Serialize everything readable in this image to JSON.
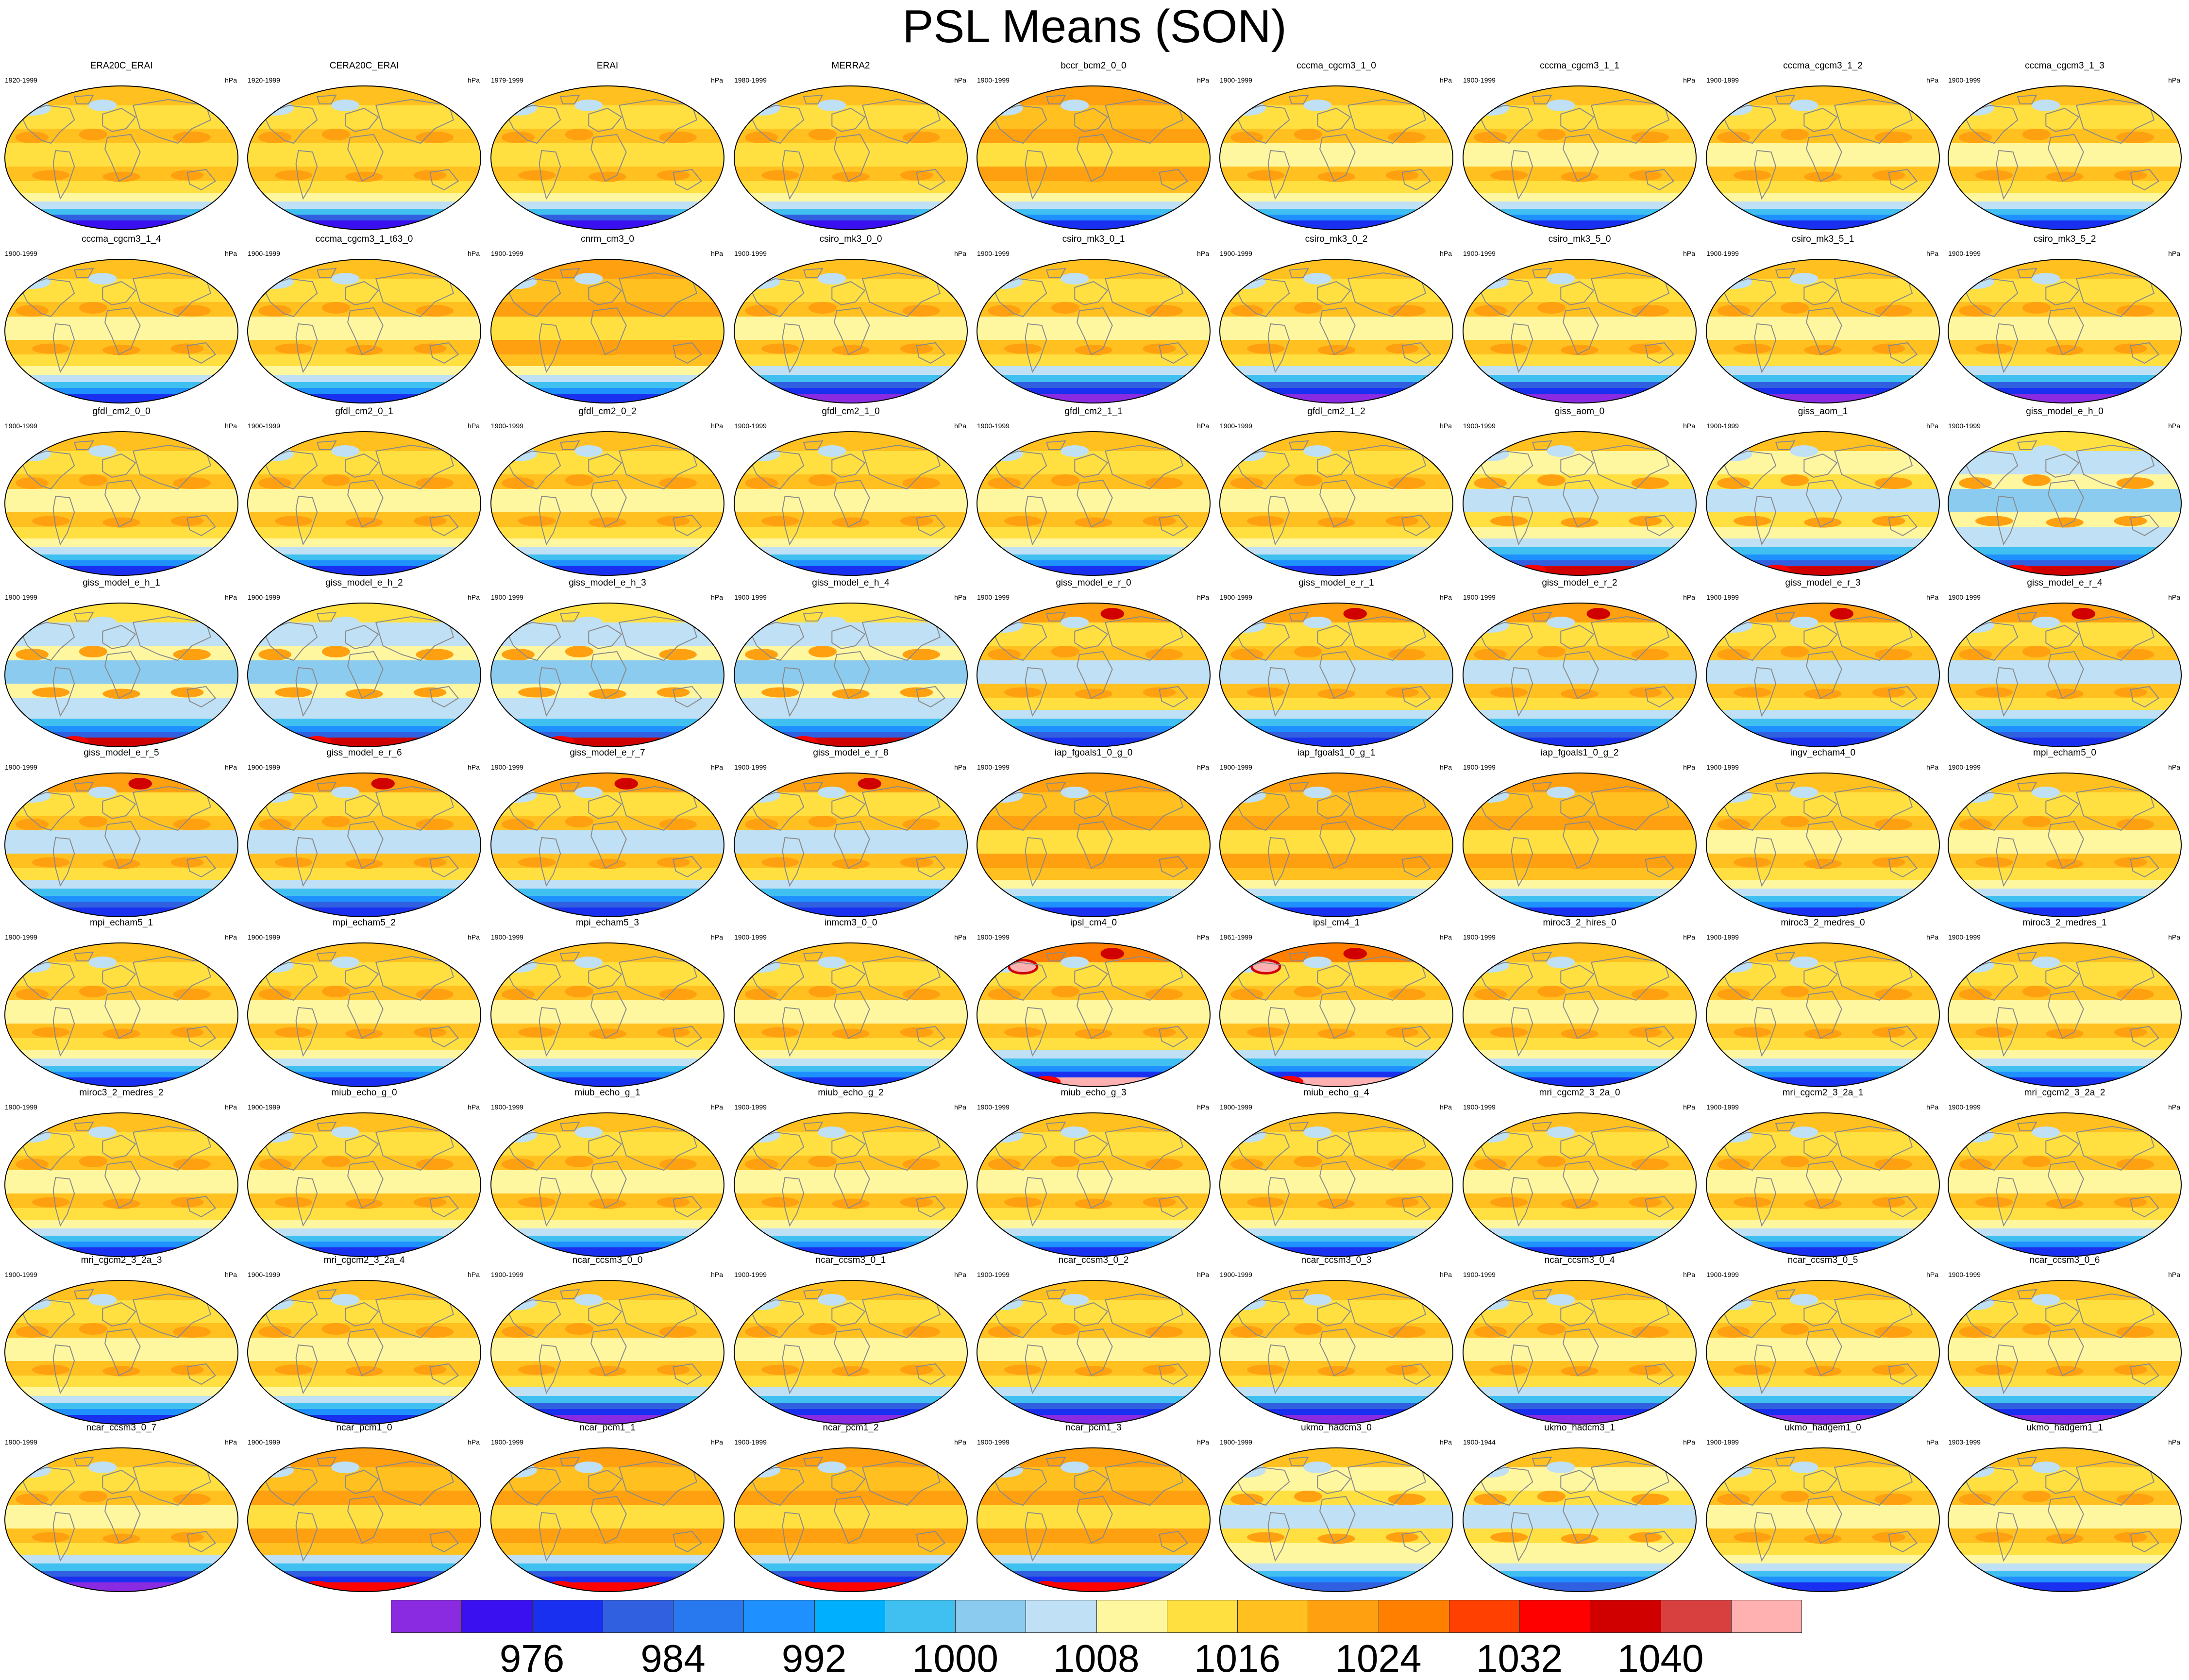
{
  "title": "PSL Means (SON)",
  "units": "hPa",
  "chart_data": {
    "type": "heatmap",
    "title": "PSL Means (SON)",
    "units": "hPa",
    "projection": "Robinson",
    "layout": {
      "rows": 9,
      "columns": 9
    },
    "colorbar": {
      "orientation": "horizontal",
      "placement": "bottom",
      "levels": [
        972,
        976,
        980,
        984,
        988,
        992,
        996,
        1000,
        1004,
        1008,
        1012,
        1016,
        1020,
        1024,
        1028,
        1032,
        1036,
        1040,
        1044
      ],
      "labels": [
        "976",
        "984",
        "992",
        "1000",
        "1008",
        "1016",
        "1024",
        "1032",
        "1040"
      ],
      "colors": [
        "#8a2be2",
        "#3a10f0",
        "#1a30f0",
        "#3060e0",
        "#2878f0",
        "#1e90ff",
        "#00b0ff",
        "#40c0f0",
        "#8ccbf0",
        "#bfe0f5",
        "#fff7a0",
        "#ffe040",
        "#ffc020",
        "#ffa010",
        "#ff8000",
        "#ff4000",
        "#ff0000",
        "#d00000",
        "#d84040",
        "#ffb0b0"
      ]
    },
    "panels": [
      {
        "name": "ERA20C_ERAI",
        "period": "1920-1999",
        "style": "obs"
      },
      {
        "name": "CERA20C_ERAI",
        "period": "1920-1999",
        "style": "obs"
      },
      {
        "name": "ERAI",
        "period": "1979-1999",
        "style": "obs"
      },
      {
        "name": "MERRA2",
        "period": "1980-1999",
        "style": "obs"
      },
      {
        "name": "bccr_bcm2_0_0",
        "period": "1900-1999",
        "style": "warm"
      },
      {
        "name": "cccma_cgcm3_1_0",
        "period": "1900-1999",
        "style": "normal"
      },
      {
        "name": "cccma_cgcm3_1_1",
        "period": "1900-1999",
        "style": "normal"
      },
      {
        "name": "cccma_cgcm3_1_2",
        "period": "1900-1999",
        "style": "normal"
      },
      {
        "name": "cccma_cgcm3_1_3",
        "period": "1900-1999",
        "style": "normal"
      },
      {
        "name": "cccma_cgcm3_1_4",
        "period": "1900-1999",
        "style": "normal"
      },
      {
        "name": "cccma_cgcm3_1_t63_0",
        "period": "1900-1999",
        "style": "normal"
      },
      {
        "name": "cnrm_cm3_0",
        "period": "1900-1999",
        "style": "warm"
      },
      {
        "name": "csiro_mk3_0_0",
        "period": "1900-1999",
        "style": "deep"
      },
      {
        "name": "csiro_mk3_0_1",
        "period": "1900-1999",
        "style": "deep"
      },
      {
        "name": "csiro_mk3_0_2",
        "period": "1900-1999",
        "style": "deep"
      },
      {
        "name": "csiro_mk3_5_0",
        "period": "1900-1999",
        "style": "deep"
      },
      {
        "name": "csiro_mk3_5_1",
        "period": "1900-1999",
        "style": "deep"
      },
      {
        "name": "csiro_mk3_5_2",
        "period": "1900-1999",
        "style": "deep"
      },
      {
        "name": "gfdl_cm2_0_0",
        "period": "1900-1999",
        "style": "normal"
      },
      {
        "name": "gfdl_cm2_0_1",
        "period": "1900-1999",
        "style": "normal"
      },
      {
        "name": "gfdl_cm2_0_2",
        "period": "1900-1999",
        "style": "normal"
      },
      {
        "name": "gfdl_cm2_1_0",
        "period": "1900-1999",
        "style": "normal"
      },
      {
        "name": "gfdl_cm2_1_1",
        "period": "1900-1999",
        "style": "normal"
      },
      {
        "name": "gfdl_cm2_1_2",
        "period": "1900-1999",
        "style": "normal"
      },
      {
        "name": "giss_aom_0",
        "period": "1900-1999",
        "style": "aom"
      },
      {
        "name": "giss_aom_1",
        "period": "1900-1999",
        "style": "aom"
      },
      {
        "name": "giss_model_e_h_0",
        "period": "1900-1999",
        "style": "cool"
      },
      {
        "name": "giss_model_e_h_1",
        "period": "1900-1999",
        "style": "cool"
      },
      {
        "name": "giss_model_e_h_2",
        "period": "1900-1999",
        "style": "cool"
      },
      {
        "name": "giss_model_e_h_3",
        "period": "1900-1999",
        "style": "cool"
      },
      {
        "name": "giss_model_e_h_4",
        "period": "1900-1999",
        "style": "cool"
      },
      {
        "name": "giss_model_e_r_0",
        "period": "1900-1999",
        "style": "gissr"
      },
      {
        "name": "giss_model_e_r_1",
        "period": "1900-1999",
        "style": "gissr"
      },
      {
        "name": "giss_model_e_r_2",
        "period": "1900-1999",
        "style": "gissr"
      },
      {
        "name": "giss_model_e_r_3",
        "period": "1900-1999",
        "style": "gissr"
      },
      {
        "name": "giss_model_e_r_4",
        "period": "1900-1999",
        "style": "gissr"
      },
      {
        "name": "giss_model_e_r_5",
        "period": "1900-1999",
        "style": "gissr"
      },
      {
        "name": "giss_model_e_r_6",
        "period": "1900-1999",
        "style": "gissr"
      },
      {
        "name": "giss_model_e_r_7",
        "period": "1900-1999",
        "style": "gissr"
      },
      {
        "name": "giss_model_e_r_8",
        "period": "1900-1999",
        "style": "gissr"
      },
      {
        "name": "iap_fgoals1_0_g_0",
        "period": "1900-1999",
        "style": "warm"
      },
      {
        "name": "iap_fgoals1_0_g_1",
        "period": "1900-1999",
        "style": "warm"
      },
      {
        "name": "iap_fgoals1_0_g_2",
        "period": "1900-1999",
        "style": "warm"
      },
      {
        "name": "ingv_echam4_0",
        "period": "1900-1999",
        "style": "normal"
      },
      {
        "name": "mpi_echam5_0",
        "period": "1900-1999",
        "style": "normal"
      },
      {
        "name": "mpi_echam5_1",
        "period": "1900-1999",
        "style": "normal"
      },
      {
        "name": "mpi_echam5_2",
        "period": "1900-1999",
        "style": "normal"
      },
      {
        "name": "mpi_echam5_3",
        "period": "1900-1999",
        "style": "normal"
      },
      {
        "name": "inmcm3_0_0",
        "period": "1900-1999",
        "style": "normal"
      },
      {
        "name": "ipsl_cm4_0",
        "period": "1900-1999",
        "style": "ipsl"
      },
      {
        "name": "ipsl_cm4_1",
        "period": "1961-1999",
        "style": "ipsl"
      },
      {
        "name": "miroc3_2_hires_0",
        "period": "1900-1999",
        "style": "normal"
      },
      {
        "name": "miroc3_2_medres_0",
        "period": "1900-1999",
        "style": "normal"
      },
      {
        "name": "miroc3_2_medres_1",
        "period": "1900-1999",
        "style": "normal"
      },
      {
        "name": "miroc3_2_medres_2",
        "period": "1900-1999",
        "style": "normal"
      },
      {
        "name": "miub_echo_g_0",
        "period": "1900-1999",
        "style": "normal"
      },
      {
        "name": "miub_echo_g_1",
        "period": "1900-1999",
        "style": "normal"
      },
      {
        "name": "miub_echo_g_2",
        "period": "1900-1999",
        "style": "normal"
      },
      {
        "name": "miub_echo_g_3",
        "period": "1900-1999",
        "style": "normal"
      },
      {
        "name": "miub_echo_g_4",
        "period": "1900-1999",
        "style": "normal"
      },
      {
        "name": "mri_cgcm2_3_2a_0",
        "period": "1900-1999",
        "style": "normal"
      },
      {
        "name": "mri_cgcm2_3_2a_1",
        "period": "1900-1999",
        "style": "normal"
      },
      {
        "name": "mri_cgcm2_3_2a_2",
        "period": "1900-1999",
        "style": "normal"
      },
      {
        "name": "mri_cgcm2_3_2a_3",
        "period": "1900-1999",
        "style": "normal"
      },
      {
        "name": "mri_cgcm2_3_2a_4",
        "period": "1900-1999",
        "style": "normal"
      },
      {
        "name": "ncar_ccsm3_0_0",
        "period": "1900-1999",
        "style": "deep"
      },
      {
        "name": "ncar_ccsm3_0_1",
        "period": "1900-1999",
        "style": "deep"
      },
      {
        "name": "ncar_ccsm3_0_2",
        "period": "1900-1999",
        "style": "deep"
      },
      {
        "name": "ncar_ccsm3_0_3",
        "period": "1900-1999",
        "style": "deep"
      },
      {
        "name": "ncar_ccsm3_0_4",
        "period": "1900-1999",
        "style": "deep"
      },
      {
        "name": "ncar_ccsm3_0_5",
        "period": "1900-1999",
        "style": "deep"
      },
      {
        "name": "ncar_ccsm3_0_6",
        "period": "1900-1999",
        "style": "deep"
      },
      {
        "name": "ncar_ccsm3_0_7",
        "period": "1900-1999",
        "style": "deep"
      },
      {
        "name": "ncar_pcm1_0",
        "period": "1900-1999",
        "style": "pcm"
      },
      {
        "name": "ncar_pcm1_1",
        "period": "1900-1999",
        "style": "pcm"
      },
      {
        "name": "ncar_pcm1_2",
        "period": "1900-1999",
        "style": "pcm"
      },
      {
        "name": "ncar_pcm1_3",
        "period": "1900-1999",
        "style": "pcm"
      },
      {
        "name": "ukmo_hadcm3_0",
        "period": "1900-1999",
        "style": "hadcm"
      },
      {
        "name": "ukmo_hadcm3_1",
        "period": "1900-1944",
        "style": "hadcm"
      },
      {
        "name": "ukmo_hadgem1_0",
        "period": "1900-1999",
        "style": "normal"
      },
      {
        "name": "ukmo_hadgem1_1",
        "period": "1903-1999",
        "style": "normal"
      }
    ]
  }
}
